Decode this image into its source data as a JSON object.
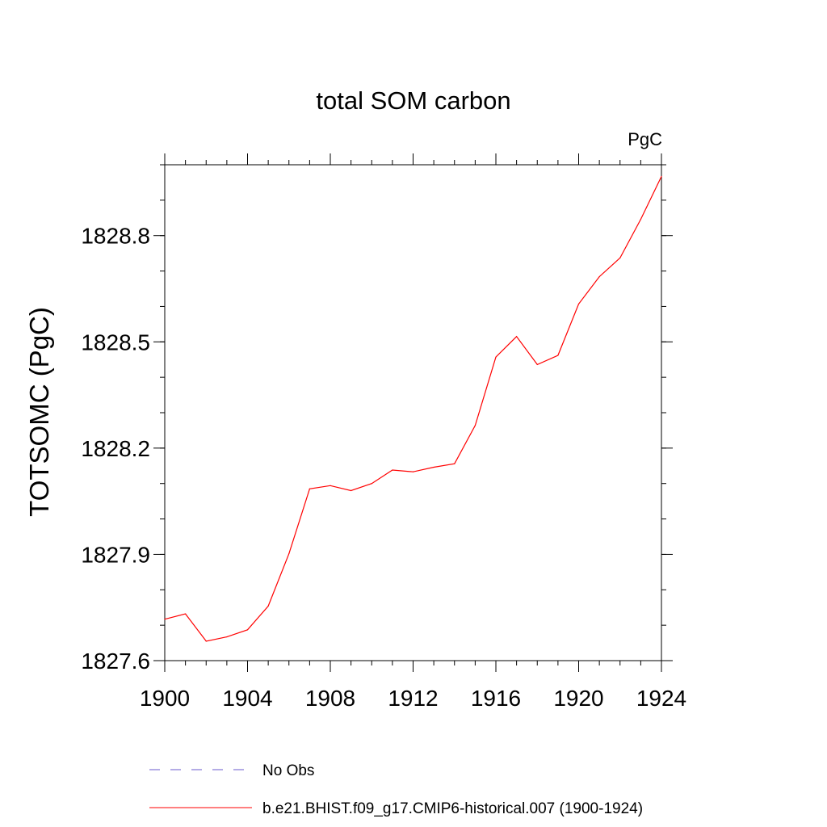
{
  "chart_data": {
    "type": "line",
    "title": "total SOM carbon",
    "units_label": "PgC",
    "ylabel": "TOTSOMC  (PgC)",
    "xlabel": "",
    "xlim": [
      1900,
      1924
    ],
    "ylim": [
      1827.6,
      1829.0
    ],
    "xticks": [
      1900,
      1904,
      1908,
      1912,
      1916,
      1920,
      1924
    ],
    "xtick_labels": [
      "1900",
      "1904",
      "1908",
      "1912",
      "1916",
      "1920",
      "1924"
    ],
    "yticks": [
      1827.6,
      1827.9,
      1828.2,
      1828.5,
      1828.8
    ],
    "ytick_labels": [
      "1827.6",
      "1827.9",
      "1828.2",
      "1828.5",
      "1828.8"
    ],
    "y_minor_step": 0.1,
    "x_minor_step": 1,
    "grid": false,
    "legend_position": "bottom",
    "legend": [
      {
        "label": "No Obs",
        "color": "#6a5acd",
        "dash": "dashed"
      },
      {
        "label": "b.e21.BHIST.f09_g17.CMIP6-historical.007 (1900-1924)",
        "color": "#ff0000",
        "dash": "solid"
      }
    ],
    "series": [
      {
        "name": "b.e21.BHIST.f09_g17.CMIP6-historical.007 (1900-1924)",
        "color": "#ff0000",
        "x": [
          1900,
          1901,
          1902,
          1903,
          1904,
          1905,
          1906,
          1907,
          1908,
          1909,
          1910,
          1911,
          1912,
          1913,
          1914,
          1915,
          1916,
          1917,
          1918,
          1919,
          1920,
          1921,
          1922,
          1923,
          1924
        ],
        "values": [
          1827.717,
          1827.732,
          1827.655,
          1827.667,
          1827.687,
          1827.754,
          1827.902,
          1828.085,
          1828.094,
          1828.08,
          1828.1,
          1828.138,
          1828.133,
          1828.146,
          1828.156,
          1828.264,
          1828.457,
          1828.515,
          1828.436,
          1828.462,
          1828.607,
          1828.684,
          1828.737,
          1828.846,
          1828.967
        ]
      }
    ]
  }
}
